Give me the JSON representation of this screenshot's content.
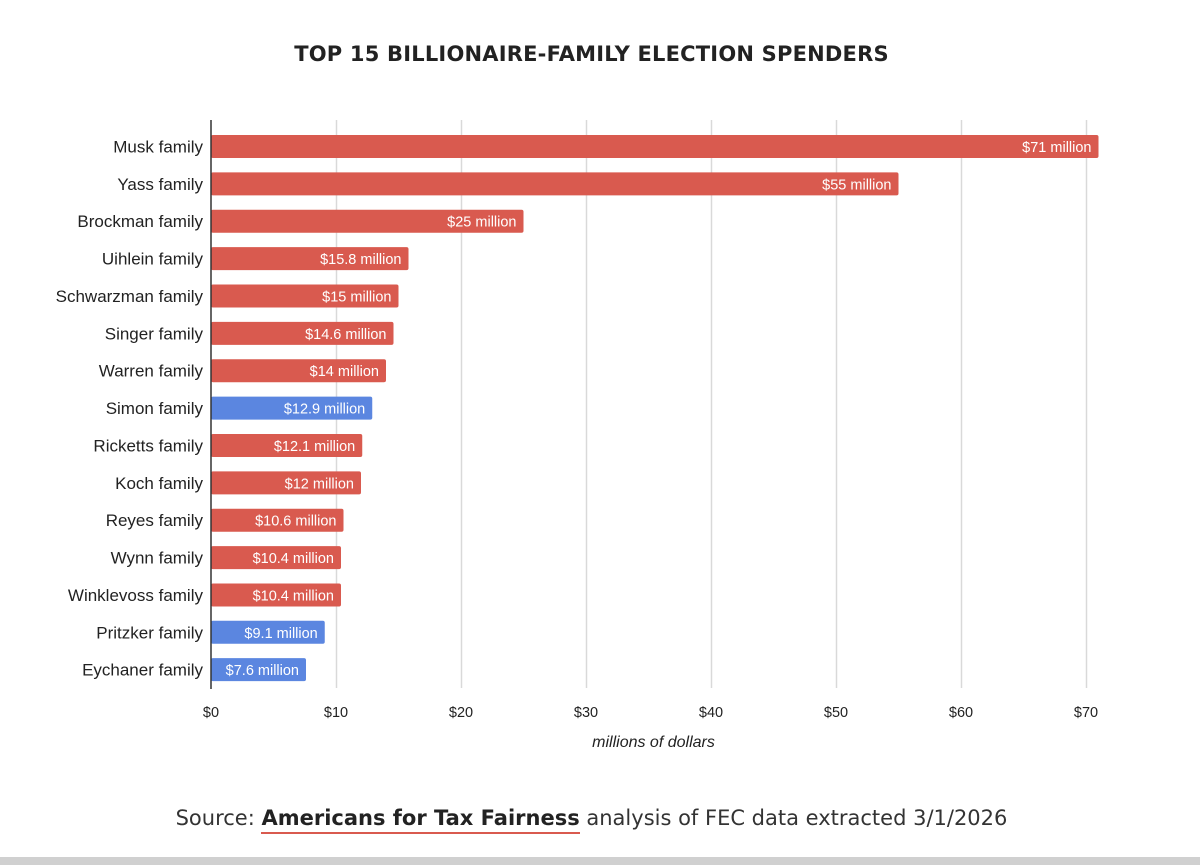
{
  "chart_data": {
    "type": "bar",
    "orientation": "horizontal",
    "title": "TOP 15 BILLIONAIRE-FAMILY ELECTION SPENDERS",
    "xlabel": "millions of dollars",
    "ylabel": "",
    "xlim": [
      0,
      70
    ],
    "x_ticks": [
      0,
      10,
      20,
      30,
      40,
      50,
      60,
      70
    ],
    "x_tick_labels": [
      "$0",
      "$10",
      "$20",
      "$30",
      "$40",
      "$50",
      "$60",
      "$70"
    ],
    "grid": true,
    "categories": [
      "Musk family",
      "Yass family",
      "Brockman family",
      "Uihlein family",
      "Schwarzman family",
      "Singer family",
      "Warren family",
      "Simon family",
      "Ricketts family",
      "Koch family",
      "Reyes family",
      "Wynn family",
      "Winklevoss family",
      "Pritzker family",
      "Eychaner family"
    ],
    "values": [
      71,
      55,
      25,
      15.8,
      15,
      14.6,
      14,
      12.9,
      12.1,
      12,
      10.6,
      10.4,
      10.4,
      9.1,
      7.6
    ],
    "data_labels": [
      "$71 million",
      "$55 million",
      "$25 million",
      "$15.8 million",
      "$15 million",
      "$14.6 million",
      "$14 million",
      "$12.9 million",
      "$12.1 million",
      "$12 million",
      "$10.6 million",
      "$10.4 million",
      "$10.4 million",
      "$9.1 million",
      "$7.6 million"
    ],
    "bar_colors": [
      "#d95a4f",
      "#d95a4f",
      "#d95a4f",
      "#d95a4f",
      "#d95a4f",
      "#d95a4f",
      "#d95a4f",
      "#5b86e0",
      "#d95a4f",
      "#d95a4f",
      "#d95a4f",
      "#d95a4f",
      "#d95a4f",
      "#5b86e0",
      "#5b86e0"
    ]
  },
  "source": {
    "prefix": "Source: ",
    "link_text": "Americans for Tax Fairness",
    "suffix": " analysis of FEC data extracted 3/1/2026"
  },
  "colors": {
    "republican_bar": "#d95a4f",
    "democrat_bar": "#5b86e0",
    "gridline": "#d9d9d9",
    "axis": "#333333",
    "text": "#222222"
  }
}
